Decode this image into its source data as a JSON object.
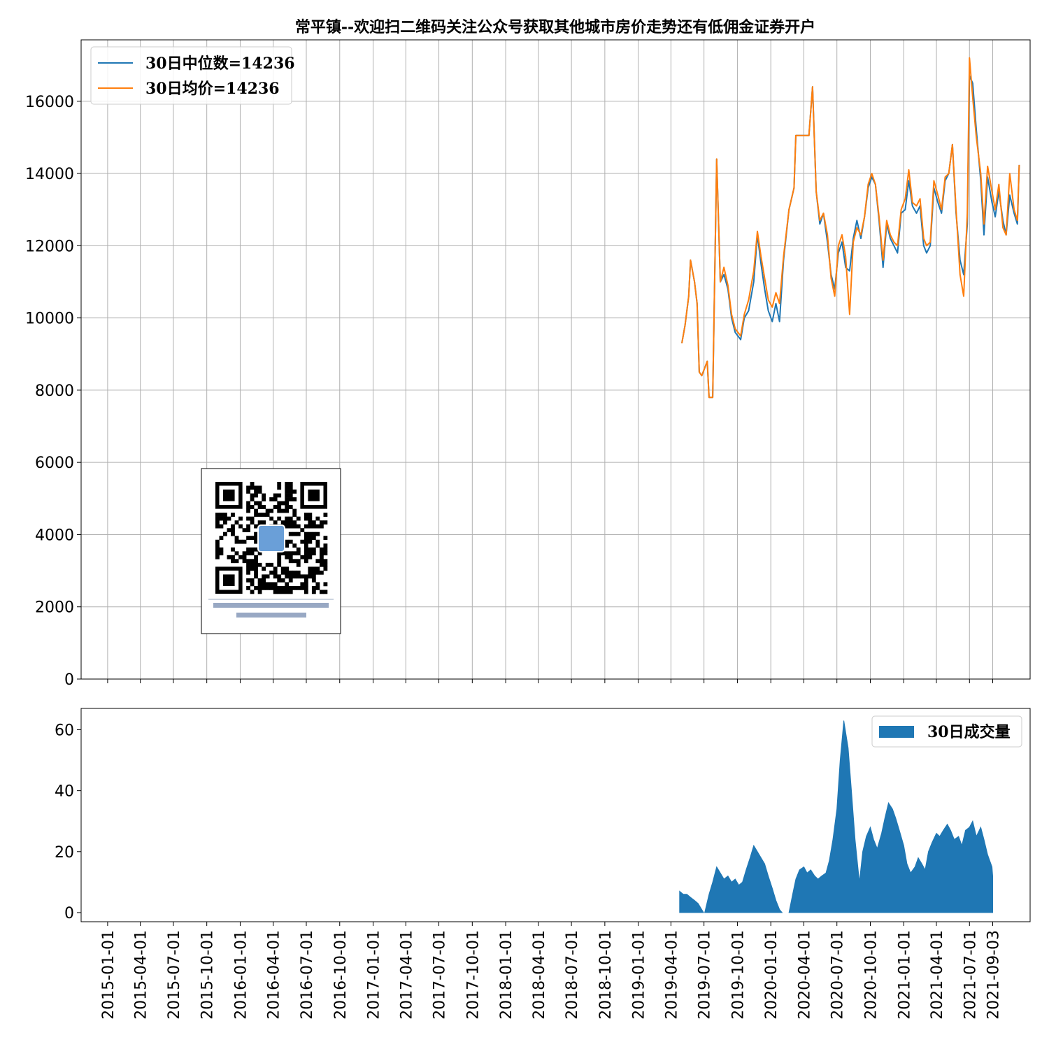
{
  "colors": {
    "median": "#1f77b4",
    "mean": "#ff7f0e",
    "volume": "#1f77b4",
    "grid": "#b0b0b0",
    "axis": "#000000"
  },
  "chart_data": [
    {
      "type": "line",
      "title": "常平镇--欢迎扫二维码关注公众号获取其他城市房价走势还有低佣金证券开户",
      "x_axis_type": "date",
      "xlim": [
        "2014-10-20",
        "2021-12-15"
      ],
      "ylim": [
        0,
        17700
      ],
      "yticks": [
        0,
        2000,
        4000,
        6000,
        8000,
        10000,
        12000,
        14000,
        16000
      ],
      "grid": true,
      "legend_position": "top-left",
      "series": [
        {
          "name": "30日中位数=14236",
          "color": "#1f77b4",
          "x": [
            "2019-05-01",
            "2019-05-10",
            "2019-05-20",
            "2019-05-25",
            "2019-06-05",
            "2019-06-12",
            "2019-06-18",
            "2019-06-25",
            "2019-07-10",
            "2019-07-15",
            "2019-07-20",
            "2019-07-25",
            "2019-08-05",
            "2019-08-15",
            "2019-08-25",
            "2019-09-05",
            "2019-09-15",
            "2019-09-25",
            "2019-10-10",
            "2019-10-20",
            "2019-11-01",
            "2019-11-15",
            "2019-11-25",
            "2019-12-05",
            "2019-12-15",
            "2019-12-25",
            "2020-01-05",
            "2020-01-15",
            "2020-01-25",
            "2020-02-05",
            "2020-02-20",
            "2020-03-05",
            "2020-03-10",
            "2020-03-25",
            "2020-04-05",
            "2020-04-15",
            "2020-04-25",
            "2020-05-05",
            "2020-05-15",
            "2020-05-25",
            "2020-06-05",
            "2020-06-15",
            "2020-06-25",
            "2020-07-05",
            "2020-07-15",
            "2020-07-25",
            "2020-08-05",
            "2020-08-15",
            "2020-08-25",
            "2020-09-05",
            "2020-09-15",
            "2020-09-25",
            "2020-10-05",
            "2020-10-15",
            "2020-10-25",
            "2020-11-05",
            "2020-11-15",
            "2020-11-25",
            "2020-12-05",
            "2020-12-15",
            "2020-12-25",
            "2021-01-05",
            "2021-01-15",
            "2021-01-25",
            "2021-02-05",
            "2021-02-15",
            "2021-02-25",
            "2021-03-05",
            "2021-03-15",
            "2021-03-25",
            "2021-04-05",
            "2021-04-15",
            "2021-04-25",
            "2021-05-05",
            "2021-05-15",
            "2021-05-25",
            "2021-06-05",
            "2021-06-15",
            "2021-06-25",
            "2021-07-01",
            "2021-07-10",
            "2021-07-20",
            "2021-08-01",
            "2021-08-10",
            "2021-08-20",
            "2021-09-01",
            "2021-09-10",
            "2021-09-20",
            "2021-10-01",
            "2021-10-10",
            "2021-10-20",
            "2021-11-01",
            "2021-11-10",
            "2021-11-15"
          ],
          "y": [
            9300,
            9800,
            10600,
            11600,
            11000,
            10400,
            8500,
            8400,
            8800,
            7800,
            7800,
            7800,
            14400,
            11000,
            11200,
            10800,
            10000,
            9600,
            9400,
            10000,
            10200,
            11000,
            12300,
            11500,
            10800,
            10200,
            9900,
            10400,
            9900,
            11600,
            13000,
            13600,
            15050,
            15050,
            15050,
            15050,
            16400,
            13500,
            12600,
            12900,
            12100,
            11200,
            10800,
            11800,
            12100,
            11400,
            11300,
            12200,
            12700,
            12200,
            12800,
            13600,
            13900,
            13700,
            12700,
            11400,
            12600,
            12200,
            12000,
            11800,
            12900,
            13000,
            13800,
            13100,
            12900,
            13100,
            12000,
            11800,
            12000,
            13600,
            13200,
            12900,
            13800,
            14000,
            14800,
            12900,
            11600,
            11200,
            12600,
            16700,
            16500,
            15200,
            13800,
            12300,
            13900,
            13200,
            12800,
            13500,
            12700,
            12300,
            13400,
            12900,
            12600,
            14236
          ]
        },
        {
          "name": "30日均价=14236",
          "color": "#ff7f0e",
          "x": [
            "2019-05-01",
            "2019-05-10",
            "2019-05-20",
            "2019-05-25",
            "2019-06-05",
            "2019-06-12",
            "2019-06-18",
            "2019-06-25",
            "2019-07-10",
            "2019-07-15",
            "2019-07-20",
            "2019-07-25",
            "2019-08-05",
            "2019-08-15",
            "2019-08-25",
            "2019-09-05",
            "2019-09-15",
            "2019-09-25",
            "2019-10-10",
            "2019-10-20",
            "2019-11-01",
            "2019-11-15",
            "2019-11-25",
            "2019-12-05",
            "2019-12-15",
            "2019-12-25",
            "2020-01-05",
            "2020-01-15",
            "2020-01-25",
            "2020-02-05",
            "2020-02-20",
            "2020-03-05",
            "2020-03-10",
            "2020-03-25",
            "2020-04-05",
            "2020-04-15",
            "2020-04-25",
            "2020-05-05",
            "2020-05-15",
            "2020-05-25",
            "2020-06-05",
            "2020-06-15",
            "2020-06-25",
            "2020-07-05",
            "2020-07-15",
            "2020-07-25",
            "2020-08-05",
            "2020-08-15",
            "2020-08-25",
            "2020-09-05",
            "2020-09-15",
            "2020-09-25",
            "2020-10-05",
            "2020-10-15",
            "2020-10-25",
            "2020-11-05",
            "2020-11-15",
            "2020-11-25",
            "2020-12-05",
            "2020-12-15",
            "2020-12-25",
            "2021-01-05",
            "2021-01-15",
            "2021-01-25",
            "2021-02-05",
            "2021-02-15",
            "2021-02-25",
            "2021-03-05",
            "2021-03-15",
            "2021-03-25",
            "2021-04-05",
            "2021-04-15",
            "2021-04-25",
            "2021-05-05",
            "2021-05-15",
            "2021-05-25",
            "2021-06-05",
            "2021-06-15",
            "2021-06-25",
            "2021-07-01",
            "2021-07-10",
            "2021-07-20",
            "2021-08-01",
            "2021-08-10",
            "2021-08-20",
            "2021-09-01",
            "2021-09-10",
            "2021-09-20",
            "2021-10-01",
            "2021-10-10",
            "2021-10-20",
            "2021-11-01",
            "2021-11-10",
            "2021-11-15"
          ],
          "y": [
            9300,
            9800,
            10600,
            11600,
            11000,
            10400,
            8500,
            8400,
            8800,
            7800,
            7800,
            7800,
            14400,
            11000,
            11400,
            10900,
            10100,
            9700,
            9500,
            10100,
            10500,
            11300,
            12400,
            11700,
            11100,
            10500,
            10300,
            10700,
            10400,
            11700,
            13000,
            13600,
            15050,
            15050,
            15050,
            15050,
            16400,
            13500,
            12700,
            12900,
            12300,
            11100,
            10600,
            12000,
            12300,
            11700,
            10100,
            12100,
            12500,
            12300,
            12800,
            13700,
            14000,
            13700,
            12800,
            11600,
            12700,
            12300,
            12100,
            12000,
            13000,
            13300,
            14100,
            13200,
            13100,
            13300,
            12200,
            12000,
            12100,
            13800,
            13400,
            13000,
            13900,
            14000,
            14800,
            13000,
            11200,
            10600,
            12900,
            17200,
            16100,
            15000,
            14000,
            12600,
            14200,
            13500,
            13000,
            13700,
            12500,
            12300,
            14000,
            13000,
            12700,
            14236
          ]
        }
      ]
    },
    {
      "type": "area",
      "x_axis_type": "date",
      "xlim": [
        "2014-10-20",
        "2021-12-15"
      ],
      "ylim": [
        -3,
        67
      ],
      "yticks": [
        0,
        20,
        40,
        60
      ],
      "xticks": [
        "2015-01-01",
        "2015-04-01",
        "2015-07-01",
        "2015-10-01",
        "2016-01-01",
        "2016-04-01",
        "2016-07-01",
        "2016-10-01",
        "2017-01-01",
        "2017-04-01",
        "2017-07-01",
        "2017-10-01",
        "2018-01-01",
        "2018-04-01",
        "2018-07-01",
        "2018-10-01",
        "2019-01-01",
        "2019-04-01",
        "2019-07-01",
        "2019-10-01",
        "2020-01-01",
        "2020-04-01",
        "2020-07-01",
        "2020-10-01",
        "2021-01-01",
        "2021-04-01",
        "2021-07-01",
        "2021-09-03"
      ],
      "grid": false,
      "legend_position": "top-right",
      "series": [
        {
          "name": "30日成交量",
          "color": "#1f77b4",
          "segments": [
            {
              "x": [
                "2019-04-25",
                "2019-05-05",
                "2019-05-15",
                "2019-05-25",
                "2019-06-05",
                "2019-06-15",
                "2019-06-25",
                "2019-06-30"
              ],
              "y": [
                7,
                6,
                6,
                5,
                4,
                3,
                1,
                0
              ]
            },
            {
              "x": [
                "2019-07-03",
                "2019-07-15",
                "2019-07-25",
                "2019-08-05",
                "2019-08-15",
                "2019-08-25",
                "2019-09-05",
                "2019-09-15",
                "2019-09-25",
                "2019-10-05",
                "2019-10-15",
                "2019-10-25",
                "2019-11-05",
                "2019-11-15",
                "2019-11-25",
                "2019-12-05",
                "2019-12-15",
                "2019-12-25",
                "2020-01-05",
                "2020-01-15",
                "2020-01-25",
                "2020-02-01"
              ],
              "y": [
                0,
                6,
                10,
                15,
                13,
                11,
                12,
                10,
                11,
                9,
                10,
                14,
                18,
                22,
                20,
                18,
                16,
                12,
                8,
                4,
                1,
                0
              ]
            },
            {
              "x": [
                "2020-02-20",
                "2020-03-01",
                "2020-03-10",
                "2020-03-20",
                "2020-04-01",
                "2020-04-10",
                "2020-04-20",
                "2020-05-01",
                "2020-05-10",
                "2020-05-20",
                "2020-06-01",
                "2020-06-10",
                "2020-06-20",
                "2020-07-01",
                "2020-07-10",
                "2020-07-20",
                "2020-08-01",
                "2020-08-10",
                "2020-08-20",
                "2020-09-01",
                "2020-09-10",
                "2020-09-20",
                "2020-10-01",
                "2020-10-10",
                "2020-10-20",
                "2020-11-01",
                "2020-11-10",
                "2020-11-20",
                "2020-12-01",
                "2020-12-10",
                "2020-12-20",
                "2021-01-01",
                "2021-01-10",
                "2021-01-20",
                "2021-02-01",
                "2021-02-10",
                "2021-02-20",
                "2021-03-01",
                "2021-03-10",
                "2021-03-20",
                "2021-04-01",
                "2021-04-10",
                "2021-04-20",
                "2021-05-01",
                "2021-05-10",
                "2021-05-20",
                "2021-06-01",
                "2021-06-10",
                "2021-06-20",
                "2021-07-01",
                "2021-07-10",
                "2021-07-20",
                "2021-08-01",
                "2021-08-10",
                "2021-08-20",
                "2021-09-01",
                "2021-09-03"
              ],
              "y": [
                0,
                6,
                11,
                14,
                15,
                13,
                14,
                12,
                11,
                12,
                13,
                17,
                24,
                34,
                50,
                63,
                54,
                40,
                24,
                10,
                20,
                25,
                28,
                24,
                21,
                26,
                31,
                36,
                34,
                31,
                27,
                22,
                16,
                13,
                15,
                18,
                16,
                14,
                20,
                23,
                26,
                25,
                27,
                29,
                27,
                24,
                25,
                22,
                27,
                28,
                30,
                25,
                28,
                24,
                19,
                15,
                12
              ]
            }
          ]
        }
      ]
    }
  ]
}
